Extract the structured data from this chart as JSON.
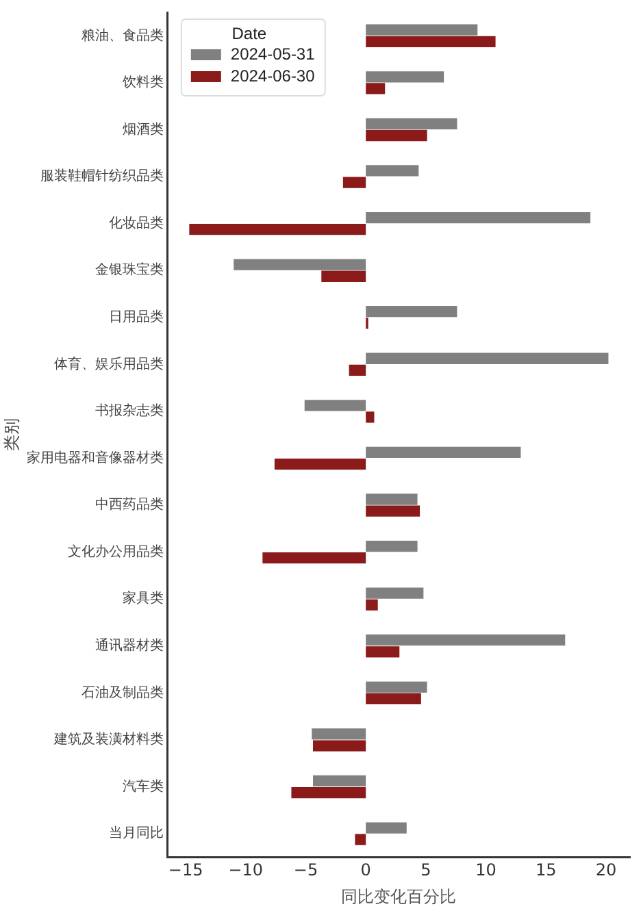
{
  "chart_data": {
    "type": "bar",
    "orientation": "horizontal",
    "xlabel": "同比变化百分比",
    "ylabel": "类别",
    "legend_title": "Date",
    "legend": "top left",
    "grid": false,
    "categories": [
      "粮油、食品类",
      "饮料类",
      "烟酒类",
      "服装鞋帽针纺织品类",
      "化妆品类",
      "金银珠宝类",
      "日用品类",
      "体育、娱乐用品类",
      "书报杂志类",
      "家用电器和音像器材类",
      "中西药品类",
      "文化办公用品类",
      "家具类",
      "通讯器材类",
      "石油及制品类",
      "建筑及装潢材料类",
      "汽车类",
      "当月同比"
    ],
    "series": [
      {
        "name": "2024-05-31",
        "color": "#808080",
        "values": [
          9.3,
          6.5,
          7.6,
          4.4,
          18.7,
          -11.0,
          7.6,
          20.2,
          -5.1,
          12.9,
          4.3,
          4.3,
          4.8,
          16.6,
          5.1,
          -4.5,
          -4.4,
          3.4
        ]
      },
      {
        "name": "2024-06-30",
        "color": "#8b1a1a",
        "values": [
          10.8,
          1.6,
          5.1,
          -1.9,
          -14.7,
          -3.7,
          0.2,
          -1.4,
          0.7,
          -7.6,
          4.5,
          -8.6,
          1.0,
          2.8,
          4.6,
          -4.4,
          -6.2,
          -0.9
        ]
      }
    ],
    "xlim": [
      -16.5,
      22
    ],
    "xticks": [
      -15,
      -10,
      -5,
      0,
      5,
      10,
      15,
      20
    ]
  }
}
